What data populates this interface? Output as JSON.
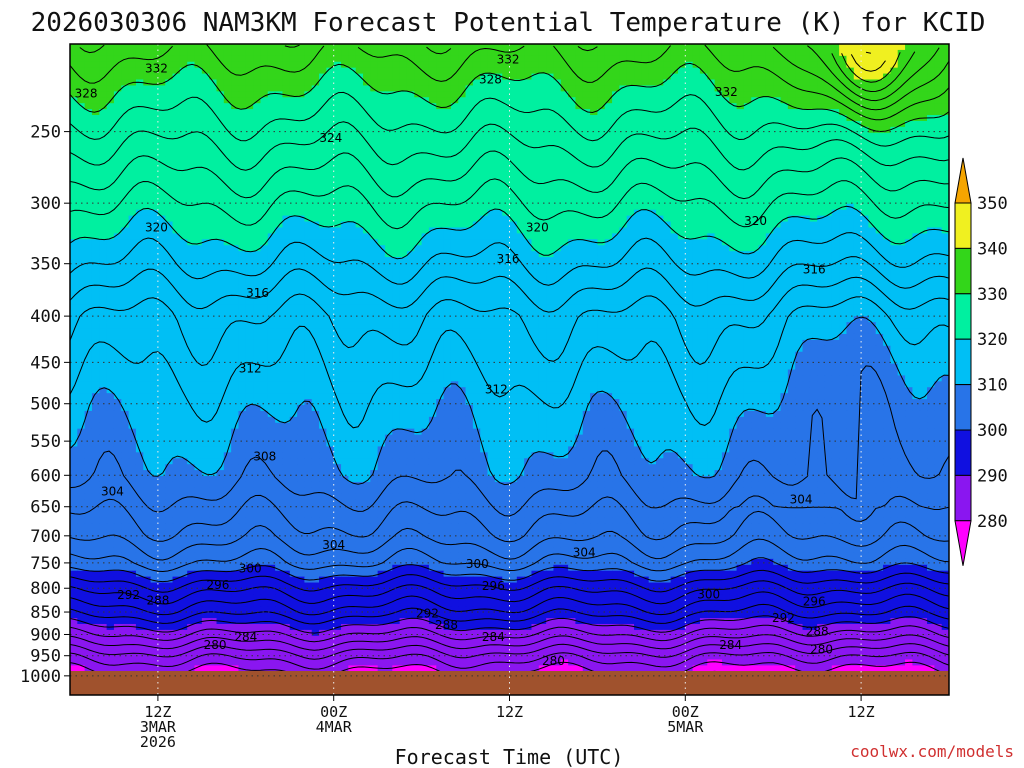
{
  "title": "2026030306 NAM3KM Forecast Potential Temperature (K) for KCID",
  "xlabel": "Forecast Time (UTC)",
  "credit": "coolwx.com/models",
  "chart_data": {
    "type": "heatmap",
    "title": "2026030306 NAM3KM Forecast Potential Temperature (K) for KCID",
    "xlabel": "Forecast Time (UTC)",
    "ylabel": "",
    "x_range_hours": [
      6,
      66
    ],
    "y_range_hpa": [
      1050,
      200
    ],
    "y_scale": "log",
    "yticks": [
      250,
      300,
      350,
      400,
      450,
      500,
      550,
      600,
      650,
      700,
      750,
      800,
      850,
      900,
      950,
      1000
    ],
    "xticks": [
      {
        "hour": 12,
        "lines": [
          "12Z",
          "3MAR",
          "2026"
        ]
      },
      {
        "hour": 24,
        "lines": [
          "00Z",
          "4MAR"
        ]
      },
      {
        "hour": 36,
        "lines": [
          "12Z"
        ]
      },
      {
        "hour": 48,
        "lines": [
          "00Z",
          "5MAR"
        ]
      },
      {
        "hour": 60,
        "lines": [
          "12Z"
        ]
      }
    ],
    "grid": true,
    "colorbar": {
      "levels": [
        280,
        290,
        300,
        310,
        320,
        330,
        340,
        350
      ],
      "colors": [
        "#ff00ff",
        "#8a16f0",
        "#1010e0",
        "#2874e8",
        "#00bff5",
        "#00f0a0",
        "#33d61a",
        "#f0f020",
        "#f5a500"
      ]
    },
    "contour_interval": 2,
    "contour_labels": [
      {
        "value": 332,
        "hour": 11.9,
        "hpa": 213
      },
      {
        "value": 332,
        "hour": 35.9,
        "hpa": 208
      },
      {
        "value": 332,
        "hour": 50.8,
        "hpa": 226
      },
      {
        "value": 328,
        "hour": 7.1,
        "hpa": 227
      },
      {
        "value": 328,
        "hour": 34.7,
        "hpa": 219
      },
      {
        "value": 324,
        "hour": 23.8,
        "hpa": 254
      },
      {
        "value": 320,
        "hour": 11.9,
        "hpa": 319
      },
      {
        "value": 320,
        "hour": 37.9,
        "hpa": 319
      },
      {
        "value": 320,
        "hour": 52.8,
        "hpa": 314
      },
      {
        "value": 316,
        "hour": 18.8,
        "hpa": 377
      },
      {
        "value": 316,
        "hour": 35.9,
        "hpa": 346
      },
      {
        "value": 316,
        "hour": 56.8,
        "hpa": 355
      },
      {
        "value": 312,
        "hour": 18.3,
        "hpa": 457
      },
      {
        "value": 312,
        "hour": 35.1,
        "hpa": 482
      },
      {
        "value": 308,
        "hour": 19.3,
        "hpa": 572
      },
      {
        "value": 304,
        "hour": 8.9,
        "hpa": 625
      },
      {
        "value": 304,
        "hour": 24.0,
        "hpa": 717
      },
      {
        "value": 304,
        "hour": 41.1,
        "hpa": 730
      },
      {
        "value": 304,
        "hour": 55.9,
        "hpa": 638
      },
      {
        "value": 300,
        "hour": 18.3,
        "hpa": 761
      },
      {
        "value": 300,
        "hour": 33.8,
        "hpa": 752
      },
      {
        "value": 300,
        "hour": 49.6,
        "hpa": 813
      },
      {
        "value": 296,
        "hour": 16.1,
        "hpa": 793
      },
      {
        "value": 296,
        "hour": 34.9,
        "hpa": 795
      },
      {
        "value": 296,
        "hour": 56.8,
        "hpa": 827
      },
      {
        "value": 292,
        "hour": 10.0,
        "hpa": 814
      },
      {
        "value": 292,
        "hour": 30.4,
        "hpa": 853
      },
      {
        "value": 292,
        "hour": 54.7,
        "hpa": 863
      },
      {
        "value": 288,
        "hour": 12.0,
        "hpa": 825
      },
      {
        "value": 288,
        "hour": 31.7,
        "hpa": 879
      },
      {
        "value": 288,
        "hour": 57.0,
        "hpa": 893
      },
      {
        "value": 284,
        "hour": 18.0,
        "hpa": 906
      },
      {
        "value": 284,
        "hour": 34.9,
        "hpa": 906
      },
      {
        "value": 284,
        "hour": 51.1,
        "hpa": 924
      },
      {
        "value": 280,
        "hour": 15.9,
        "hpa": 925
      },
      {
        "value": 280,
        "hour": 39.0,
        "hpa": 963
      },
      {
        "value": 280,
        "hour": 57.3,
        "hpa": 935
      }
    ]
  }
}
